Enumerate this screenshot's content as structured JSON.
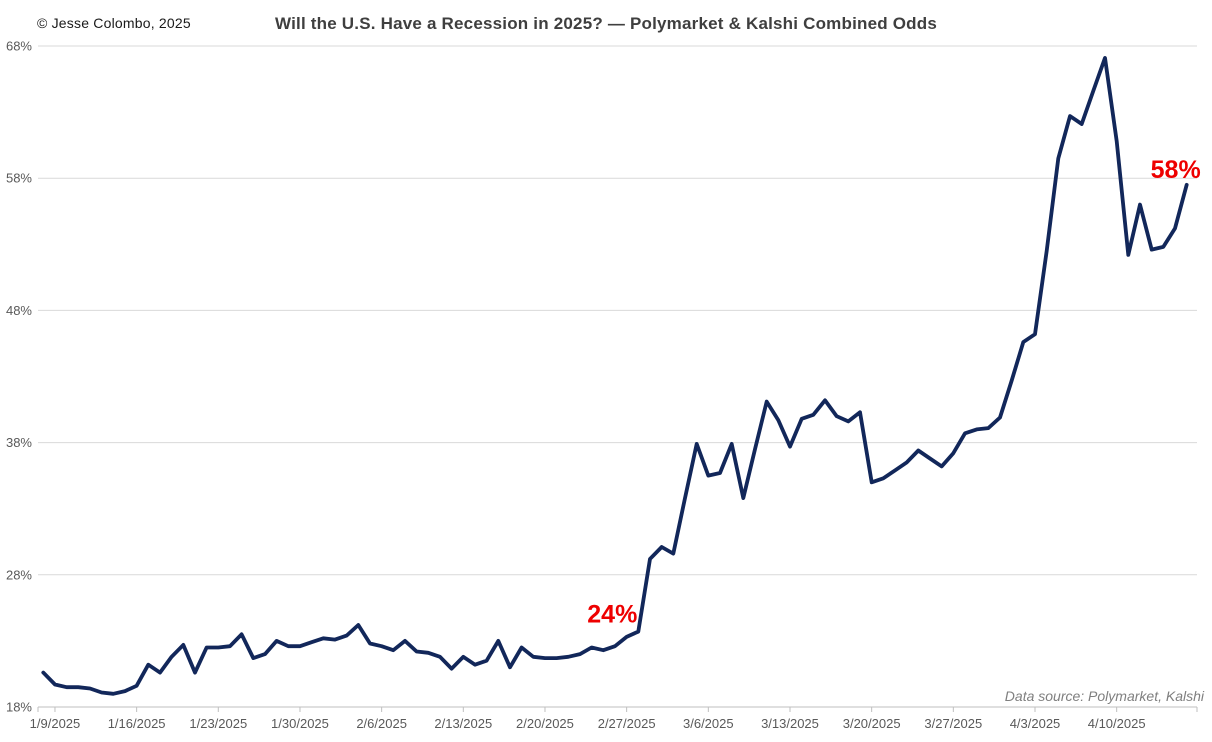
{
  "header": {
    "copyright": "© Jesse Colombo, 2025",
    "title": "Will the U.S. Have a Recession in 2025? — Polymarket & Kalshi Combined Odds"
  },
  "footer": {
    "source": "Data source: Polymarket, Kalshi"
  },
  "chart_data": {
    "type": "line",
    "title": "Will the U.S. Have a Recession in 2025? — Polymarket & Kalshi Combined Odds",
    "series_name": "Polymarket & Kalshi combined recession odds (%)",
    "x": [
      "1/8/2025",
      "1/9/2025",
      "1/10/2025",
      "1/11/2025",
      "1/12/2025",
      "1/13/2025",
      "1/14/2025",
      "1/15/2025",
      "1/16/2025",
      "1/17/2025",
      "1/18/2025",
      "1/19/2025",
      "1/20/2025",
      "1/21/2025",
      "1/22/2025",
      "1/23/2025",
      "1/24/2025",
      "1/25/2025",
      "1/26/2025",
      "1/27/2025",
      "1/28/2025",
      "1/29/2025",
      "1/30/2025",
      "1/31/2025",
      "2/1/2025",
      "2/2/2025",
      "2/3/2025",
      "2/4/2025",
      "2/5/2025",
      "2/6/2025",
      "2/7/2025",
      "2/8/2025",
      "2/9/2025",
      "2/10/2025",
      "2/11/2025",
      "2/12/2025",
      "2/13/2025",
      "2/14/2025",
      "2/15/2025",
      "2/16/2025",
      "2/17/2025",
      "2/18/2025",
      "2/19/2025",
      "2/20/2025",
      "2/21/2025",
      "2/22/2025",
      "2/23/2025",
      "2/24/2025",
      "2/25/2025",
      "2/26/2025",
      "2/27/2025",
      "2/28/2025",
      "3/1/2025",
      "3/2/2025",
      "3/3/2025",
      "3/4/2025",
      "3/5/2025",
      "3/6/2025",
      "3/7/2025",
      "3/8/2025",
      "3/9/2025",
      "3/10/2025",
      "3/11/2025",
      "3/12/2025",
      "3/13/2025",
      "3/14/2025",
      "3/15/2025",
      "3/16/2025",
      "3/17/2025",
      "3/18/2025",
      "3/19/2025",
      "3/20/2025",
      "3/21/2025",
      "3/22/2025",
      "3/23/2025",
      "3/24/2025",
      "3/25/2025",
      "3/26/2025",
      "3/27/2025",
      "3/28/2025",
      "3/29/2025",
      "3/30/2025",
      "3/31/2025",
      "4/1/2025",
      "4/2/2025",
      "4/3/2025",
      "4/4/2025",
      "4/5/2025",
      "4/6/2025",
      "4/7/2025",
      "4/8/2025",
      "4/9/2025",
      "4/10/2025",
      "4/11/2025",
      "4/12/2025",
      "4/13/2025",
      "4/14/2025",
      "4/15/2025",
      "4/16/2025"
    ],
    "values": [
      20.6,
      19.7,
      19.5,
      19.5,
      19.4,
      19.1,
      19.0,
      19.2,
      19.6,
      21.2,
      20.6,
      21.8,
      22.7,
      20.6,
      22.5,
      22.5,
      22.6,
      23.5,
      21.7,
      22.0,
      23.0,
      22.6,
      22.6,
      22.9,
      23.2,
      23.1,
      23.4,
      24.2,
      22.8,
      22.6,
      22.3,
      23.0,
      22.2,
      22.1,
      21.8,
      20.9,
      21.8,
      21.2,
      21.5,
      23.0,
      21.0,
      22.5,
      21.8,
      21.7,
      21.7,
      21.8,
      22.0,
      22.5,
      22.3,
      22.6,
      23.3,
      23.7,
      29.2,
      30.1,
      29.6,
      33.8,
      37.9,
      35.5,
      35.7,
      37.9,
      33.8,
      37.5,
      41.1,
      39.7,
      37.7,
      39.8,
      40.1,
      41.2,
      40.0,
      39.6,
      40.3,
      35.0,
      35.3,
      35.9,
      36.5,
      37.4,
      36.8,
      36.2,
      37.2,
      38.7,
      39.0,
      39.1,
      39.9,
      42.7,
      45.6,
      46.2,
      52.5,
      59.5,
      62.7,
      62.1,
      64.6,
      67.1,
      60.8,
      52.2,
      56.0,
      52.6,
      52.8,
      54.2,
      57.5
    ],
    "ylim": [
      18,
      68
    ],
    "yticks": [
      18,
      28,
      38,
      48,
      58,
      68
    ],
    "ytick_suffix": "%",
    "xtick_labels": [
      "1/9/2025",
      "1/16/2025",
      "1/23/2025",
      "1/30/2025",
      "2/6/2025",
      "2/13/2025",
      "2/20/2025",
      "2/27/2025",
      "3/6/2025",
      "3/13/2025",
      "3/20/2025",
      "3/27/2025",
      "4/3/2025",
      "4/10/2025"
    ],
    "grid": "horizontal",
    "legend": "none",
    "line_color": "#12275a",
    "gridline_color": "#d9d9d9",
    "axis_color": "#bfbfbf",
    "tick_label_color": "#595959",
    "annotation_color": "#ee0000",
    "annotations": [
      {
        "text": "24%",
        "date": "2/28/2025"
      },
      {
        "text": "58%",
        "date": "4/16/2025"
      }
    ]
  }
}
